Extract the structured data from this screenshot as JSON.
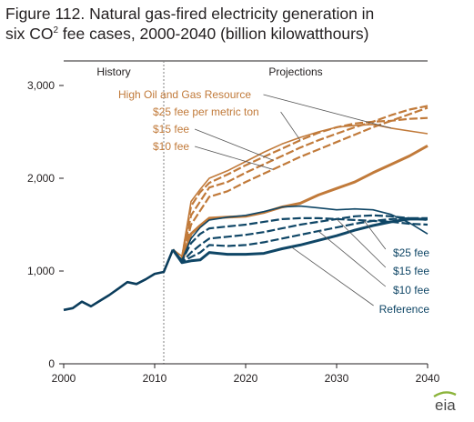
{
  "title": {
    "line1": "Figure 112. Natural gas-fired electricity generation in",
    "line2_pre": "six CO",
    "line2_sup": "2",
    "line2_post": " fee cases, 2000-2040 (billion kilowatthours)"
  },
  "logo_text": "eia",
  "colors": {
    "history": "#0b3d5c",
    "blue_series": "#0f4666",
    "orange_series": "#c17a3a",
    "axis": "#231f20",
    "divider": "#7f7f7f",
    "leader": "#555555"
  },
  "chart_data": {
    "type": "line",
    "xlim": [
      2000,
      2040
    ],
    "ylim": [
      0,
      3000
    ],
    "x_ticks": [
      "2000",
      "2010",
      "2020",
      "2030",
      "2040"
    ],
    "y_ticks": [
      "0",
      "1,000",
      "2,000",
      "3,000"
    ],
    "divider_year": 2011,
    "period_labels": {
      "history": "History",
      "projections": "Projections"
    },
    "history": {
      "x": [
        2000,
        2001,
        2002,
        2003,
        2004,
        2005,
        2006,
        2007,
        2008,
        2009,
        2010,
        2011,
        2012
      ],
      "y": [
        580,
        600,
        670,
        620,
        680,
        740,
        810,
        880,
        860,
        910,
        970,
        990,
        1230
      ]
    },
    "series": [
      {
        "name": "Reference",
        "color": "orange",
        "style": "solid",
        "width": 3,
        "x": [
          2012,
          2013,
          2014,
          2015,
          2016,
          2018,
          2020,
          2022,
          2024,
          2026,
          2028,
          2030,
          2032,
          2034,
          2036,
          2038,
          2040
        ],
        "y": [
          1230,
          1100,
          1400,
          1490,
          1570,
          1580,
          1590,
          1630,
          1690,
          1730,
          1820,
          1890,
          1960,
          2060,
          2150,
          2240,
          2350
        ]
      },
      {
        "name": "$10 fee",
        "color": "orange",
        "style": "dashed",
        "width": 2.2,
        "x": [
          2012,
          2013,
          2014,
          2015,
          2016,
          2018,
          2020,
          2022,
          2024,
          2026,
          2028,
          2030,
          2032,
          2034,
          2036,
          2038,
          2040
        ],
        "y": [
          1230,
          1120,
          1500,
          1650,
          1800,
          1860,
          1960,
          2050,
          2140,
          2230,
          2310,
          2390,
          2470,
          2550,
          2620,
          2690,
          2760
        ]
      },
      {
        "name": "$15 fee",
        "color": "orange",
        "style": "dashed",
        "width": 2.2,
        "x": [
          2012,
          2013,
          2014,
          2015,
          2016,
          2018,
          2020,
          2022,
          2024,
          2026,
          2028,
          2030,
          2032,
          2034,
          2036,
          2038,
          2040
        ],
        "y": [
          1230,
          1130,
          1600,
          1750,
          1900,
          1960,
          2060,
          2150,
          2240,
          2330,
          2410,
          2480,
          2550,
          2610,
          2680,
          2740,
          2780
        ]
      },
      {
        "name": "$25 fee per metric ton",
        "color": "orange",
        "style": "dashed",
        "width": 2.2,
        "x": [
          2012,
          2013,
          2014,
          2015,
          2016,
          2018,
          2020,
          2022,
          2024,
          2026,
          2028,
          2030,
          2032,
          2034,
          2036,
          2038,
          2040
        ],
        "y": [
          1230,
          1150,
          1700,
          1850,
          1950,
          2040,
          2140,
          2230,
          2320,
          2410,
          2490,
          2550,
          2590,
          2610,
          2620,
          2640,
          2650
        ]
      },
      {
        "name": "High Oil and Gas Resource",
        "color": "orange",
        "style": "solid",
        "width": 1.6,
        "x": [
          2012,
          2013,
          2014,
          2015,
          2016,
          2018,
          2020,
          2022,
          2024,
          2026,
          2028,
          2030,
          2032,
          2034,
          2036,
          2038,
          2040
        ],
        "y": [
          1230,
          1160,
          1750,
          1880,
          2000,
          2080,
          2180,
          2280,
          2370,
          2440,
          2500,
          2550,
          2570,
          2580,
          2540,
          2510,
          2480
        ]
      },
      {
        "name": "Reference",
        "color": "blue",
        "style": "solid",
        "width": 3,
        "x": [
          2012,
          2013,
          2014,
          2015,
          2016,
          2018,
          2020,
          2022,
          2024,
          2026,
          2028,
          2030,
          2032,
          2034,
          2036,
          2038,
          2040
        ],
        "y": [
          1230,
          1090,
          1110,
          1120,
          1200,
          1180,
          1180,
          1190,
          1240,
          1280,
          1330,
          1380,
          1440,
          1490,
          1530,
          1560,
          1560
        ]
      },
      {
        "name": "$10 fee",
        "color": "blue",
        "style": "dashed",
        "width": 2.2,
        "x": [
          2012,
          2013,
          2014,
          2015,
          2016,
          2018,
          2020,
          2022,
          2024,
          2026,
          2028,
          2030,
          2032,
          2034,
          2036,
          2038,
          2040
        ],
        "y": [
          1230,
          1100,
          1150,
          1200,
          1280,
          1270,
          1280,
          1310,
          1350,
          1390,
          1430,
          1470,
          1510,
          1540,
          1560,
          1570,
          1570
        ]
      },
      {
        "name": "$15 fee",
        "color": "blue",
        "style": "dashed",
        "width": 2.2,
        "x": [
          2012,
          2013,
          2014,
          2015,
          2016,
          2018,
          2020,
          2022,
          2024,
          2026,
          2028,
          2030,
          2032,
          2034,
          2036,
          2038,
          2040
        ],
        "y": [
          1230,
          1100,
          1200,
          1280,
          1350,
          1370,
          1390,
          1420,
          1460,
          1500,
          1530,
          1560,
          1590,
          1600,
          1590,
          1570,
          1550
        ]
      },
      {
        "name": "$25 fee",
        "color": "blue",
        "style": "dashed",
        "width": 2.2,
        "x": [
          2012,
          2013,
          2014,
          2015,
          2016,
          2018,
          2020,
          2022,
          2024,
          2026,
          2028,
          2030,
          2032,
          2034,
          2036,
          2038,
          2040
        ],
        "y": [
          1230,
          1110,
          1300,
          1400,
          1460,
          1480,
          1500,
          1530,
          1560,
          1570,
          1570,
          1560,
          1550,
          1540,
          1530,
          1510,
          1500
        ]
      },
      {
        "name": "",
        "color": "blue",
        "style": "solid",
        "width": 1.6,
        "x": [
          2012,
          2013,
          2014,
          2015,
          2016,
          2018,
          2020,
          2022,
          2024,
          2026,
          2028,
          2030,
          2032,
          2034,
          2036,
          2038,
          2040
        ],
        "y": [
          1230,
          1120,
          1350,
          1470,
          1550,
          1580,
          1600,
          1640,
          1690,
          1700,
          1680,
          1660,
          1670,
          1660,
          1610,
          1520,
          1400
        ]
      }
    ],
    "labels": [
      {
        "text": "High Oil and Gas Resource",
        "color": "orange",
        "series": 4
      },
      {
        "text": "$25 fee per metric ton",
        "color": "orange",
        "series": 3
      },
      {
        "text": "$15 fee",
        "color": "orange",
        "series": 2
      },
      {
        "text": "$10 fee",
        "color": "orange",
        "series": 1
      },
      {
        "text": "$25 fee",
        "color": "blue",
        "series": 8
      },
      {
        "text": "$15 fee",
        "color": "blue",
        "series": 7
      },
      {
        "text": "$10 fee",
        "color": "blue",
        "series": 6
      },
      {
        "text": "Reference",
        "color": "blue",
        "series": 5
      }
    ]
  }
}
